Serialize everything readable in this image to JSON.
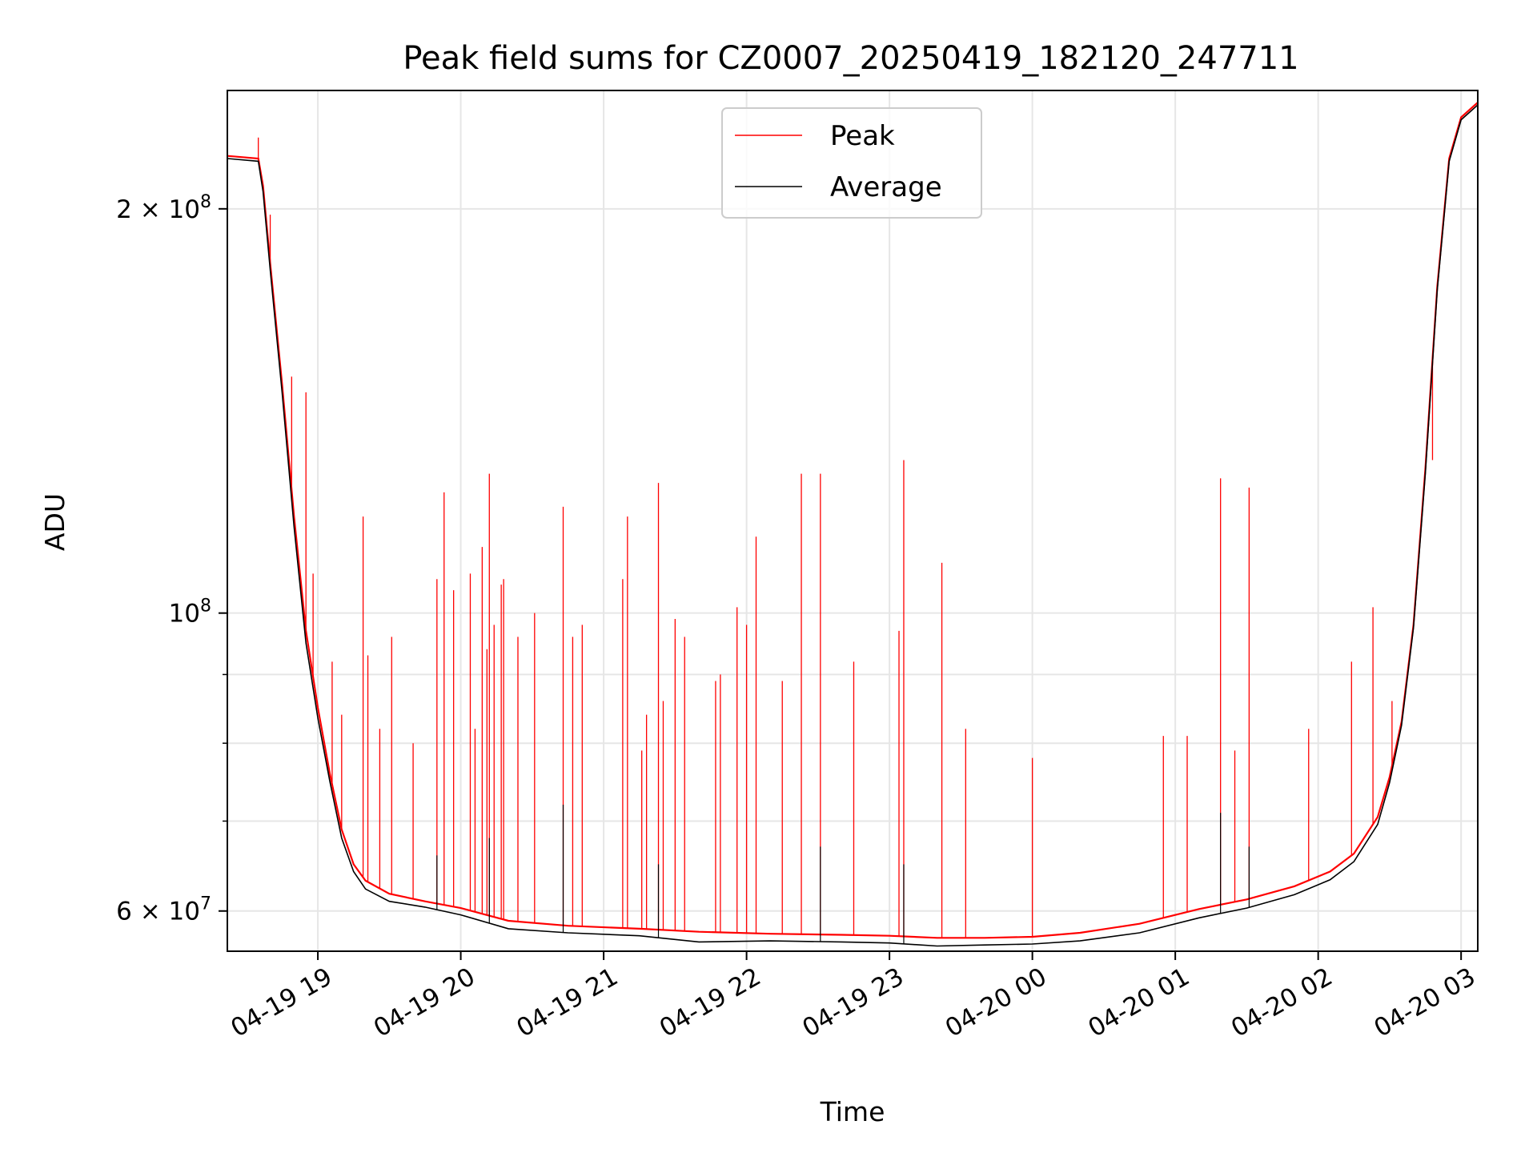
{
  "chart_data": {
    "type": "line",
    "title": "Peak field sums for CZ0007_20250419_182120_247711",
    "xlabel": "Time",
    "ylabel": "ADU",
    "yscale": "log",
    "xlim": [
      "2025-04-19T18:22",
      "2025-04-20T03:07"
    ],
    "ylim": [
      56000000,
      245000000
    ],
    "grid": true,
    "legend": {
      "placement": "top-center",
      "entries": [
        "Peak",
        "Average"
      ]
    },
    "x_ticks": [
      {
        "value": "2025-04-19T19:00",
        "label": "04-19 19"
      },
      {
        "value": "2025-04-19T20:00",
        "label": "04-19 20"
      },
      {
        "value": "2025-04-19T21:00",
        "label": "04-19 21"
      },
      {
        "value": "2025-04-19T22:00",
        "label": "04-19 22"
      },
      {
        "value": "2025-04-19T23:00",
        "label": "04-19 23"
      },
      {
        "value": "2025-04-20T00:00",
        "label": "04-20 00"
      },
      {
        "value": "2025-04-20T01:00",
        "label": "04-20 01"
      },
      {
        "value": "2025-04-20T02:00",
        "label": "04-20 02"
      },
      {
        "value": "2025-04-20T03:00",
        "label": "04-20 03"
      }
    ],
    "y_ticks": [
      {
        "value": 60000000,
        "mantissa": "6",
        "exponent": "7"
      },
      {
        "value": 100000000,
        "mantissa": "",
        "exponent": "8"
      },
      {
        "value": 200000000,
        "mantissa": "2",
        "exponent": "8"
      }
    ],
    "y_minor_ticks": [
      70000000,
      80000000,
      90000000
    ],
    "series": [
      {
        "name": "Peak",
        "color": "#ff0000",
        "baseline": [
          [
            "2025-04-19T18:22",
            219000000
          ],
          [
            "2025-04-19T18:35",
            218000000
          ],
          [
            "2025-04-19T18:37",
            208000000
          ],
          [
            "2025-04-19T18:40",
            182000000
          ],
          [
            "2025-04-19T18:45",
            148000000
          ],
          [
            "2025-04-19T18:50",
            118000000
          ],
          [
            "2025-04-19T18:55",
            97000000
          ],
          [
            "2025-04-19T19:00",
            85000000
          ],
          [
            "2025-04-19T19:05",
            76000000
          ],
          [
            "2025-04-19T19:10",
            69000000
          ],
          [
            "2025-04-19T19:15",
            65000000
          ],
          [
            "2025-04-19T19:20",
            63200000
          ],
          [
            "2025-04-19T19:30",
            61800000
          ],
          [
            "2025-04-19T19:45",
            61000000
          ],
          [
            "2025-04-19T20:00",
            60300000
          ],
          [
            "2025-04-19T20:20",
            59000000
          ],
          [
            "2025-04-19T20:45",
            58500000
          ],
          [
            "2025-04-19T21:15",
            58200000
          ],
          [
            "2025-04-19T21:40",
            57900000
          ],
          [
            "2025-04-19T22:10",
            57700000
          ],
          [
            "2025-04-19T22:40",
            57600000
          ],
          [
            "2025-04-19T23:00",
            57500000
          ],
          [
            "2025-04-19T23:20",
            57300000
          ],
          [
            "2025-04-19T23:40",
            57300000
          ],
          [
            "2025-04-20T00:00",
            57400000
          ],
          [
            "2025-04-20T00:20",
            57800000
          ],
          [
            "2025-04-20T00:45",
            58700000
          ],
          [
            "2025-04-20T01:10",
            60200000
          ],
          [
            "2025-04-20T01:30",
            61200000
          ],
          [
            "2025-04-20T01:50",
            62600000
          ],
          [
            "2025-04-20T02:05",
            64200000
          ],
          [
            "2025-04-20T02:15",
            66200000
          ],
          [
            "2025-04-20T02:25",
            70500000
          ],
          [
            "2025-04-20T02:30",
            75500000
          ],
          [
            "2025-04-20T02:35",
            83000000
          ],
          [
            "2025-04-20T02:40",
            98000000
          ],
          [
            "2025-04-20T02:45",
            128000000
          ],
          [
            "2025-04-20T02:50",
            175000000
          ],
          [
            "2025-04-20T02:55",
            218000000
          ],
          [
            "2025-04-20T03:00",
            234000000
          ],
          [
            "2025-04-20T03:07",
            240000000
          ]
        ],
        "spikes": [
          [
            "2025-04-19T18:35",
            226000000
          ],
          [
            "2025-04-19T18:40",
            198000000
          ],
          [
            "2025-04-19T18:49",
            150000000
          ],
          [
            "2025-04-19T18:55",
            146000000
          ],
          [
            "2025-04-19T18:58",
            107000000
          ],
          [
            "2025-04-19T19:06",
            92000000
          ],
          [
            "2025-04-19T19:10",
            84000000
          ],
          [
            "2025-04-19T19:19",
            118000000
          ],
          [
            "2025-04-19T19:21",
            93000000
          ],
          [
            "2025-04-19T19:26",
            82000000
          ],
          [
            "2025-04-19T19:31",
            96000000
          ],
          [
            "2025-04-19T19:40",
            80000000
          ],
          [
            "2025-04-19T19:50",
            106000000
          ],
          [
            "2025-04-19T19:53",
            123000000
          ],
          [
            "2025-04-19T19:57",
            104000000
          ],
          [
            "2025-04-19T20:04",
            107000000
          ],
          [
            "2025-04-19T20:06",
            82000000
          ],
          [
            "2025-04-19T20:09",
            112000000
          ],
          [
            "2025-04-19T20:11",
            94000000
          ],
          [
            "2025-04-19T20:12",
            127000000
          ],
          [
            "2025-04-19T20:14",
            98000000
          ],
          [
            "2025-04-19T20:17",
            105000000
          ],
          [
            "2025-04-19T20:18",
            106000000
          ],
          [
            "2025-04-19T20:24",
            96000000
          ],
          [
            "2025-04-19T20:31",
            100000000
          ],
          [
            "2025-04-19T20:43",
            120000000
          ],
          [
            "2025-04-19T20:47",
            96000000
          ],
          [
            "2025-04-19T20:51",
            98000000
          ],
          [
            "2025-04-19T21:08",
            106000000
          ],
          [
            "2025-04-19T21:10",
            118000000
          ],
          [
            "2025-04-19T21:16",
            79000000
          ],
          [
            "2025-04-19T21:18",
            84000000
          ],
          [
            "2025-04-19T21:23",
            125000000
          ],
          [
            "2025-04-19T21:25",
            86000000
          ],
          [
            "2025-04-19T21:30",
            99000000
          ],
          [
            "2025-04-19T21:34",
            96000000
          ],
          [
            "2025-04-19T21:47",
            89000000
          ],
          [
            "2025-04-19T21:49",
            90000000
          ],
          [
            "2025-04-19T21:56",
            101000000
          ],
          [
            "2025-04-19T22:00",
            98000000
          ],
          [
            "2025-04-19T22:04",
            114000000
          ],
          [
            "2025-04-19T22:15",
            89000000
          ],
          [
            "2025-04-19T22:23",
            127000000
          ],
          [
            "2025-04-19T22:31",
            127000000
          ],
          [
            "2025-04-19T22:45",
            92000000
          ],
          [
            "2025-04-19T23:04",
            97000000
          ],
          [
            "2025-04-19T23:06",
            130000000
          ],
          [
            "2025-04-19T23:22",
            109000000
          ],
          [
            "2025-04-19T23:32",
            82000000
          ],
          [
            "2025-04-20T00:00",
            78000000
          ],
          [
            "2025-04-20T00:55",
            81000000
          ],
          [
            "2025-04-20T01:05",
            81000000
          ],
          [
            "2025-04-20T01:19",
            126000000
          ],
          [
            "2025-04-20T01:25",
            79000000
          ],
          [
            "2025-04-20T01:31",
            124000000
          ],
          [
            "2025-04-20T01:56",
            82000000
          ],
          [
            "2025-04-20T02:14",
            92000000
          ],
          [
            "2025-04-20T02:23",
            101000000
          ],
          [
            "2025-04-20T02:31",
            86000000
          ],
          [
            "2025-04-20T02:48",
            130000000
          ]
        ]
      },
      {
        "name": "Average",
        "color": "#000000",
        "points": [
          [
            "2025-04-19T18:22",
            218000000
          ],
          [
            "2025-04-19T18:35",
            217000000
          ],
          [
            "2025-04-19T18:37",
            206000000
          ],
          [
            "2025-04-19T18:40",
            180000000
          ],
          [
            "2025-04-19T18:45",
            146000000
          ],
          [
            "2025-04-19T18:50",
            116000000
          ],
          [
            "2025-04-19T18:55",
            95000000
          ],
          [
            "2025-04-19T19:00",
            83500000
          ],
          [
            "2025-04-19T19:05",
            75000000
          ],
          [
            "2025-04-19T19:10",
            68000000
          ],
          [
            "2025-04-19T19:15",
            64200000
          ],
          [
            "2025-04-19T19:20",
            62300000
          ],
          [
            "2025-04-19T19:30",
            61000000
          ],
          [
            "2025-04-19T19:45",
            60400000
          ],
          [
            "2025-04-19T20:00",
            59600000
          ],
          [
            "2025-04-19T20:20",
            58200000
          ],
          [
            "2025-04-19T20:45",
            57800000
          ],
          [
            "2025-04-19T21:15",
            57500000
          ],
          [
            "2025-04-19T21:40",
            56900000
          ],
          [
            "2025-04-19T22:10",
            57000000
          ],
          [
            "2025-04-19T22:40",
            56900000
          ],
          [
            "2025-04-19T23:00",
            56800000
          ],
          [
            "2025-04-19T23:20",
            56500000
          ],
          [
            "2025-04-19T23:40",
            56600000
          ],
          [
            "2025-04-20T00:00",
            56700000
          ],
          [
            "2025-04-20T00:20",
            57000000
          ],
          [
            "2025-04-20T00:45",
            57800000
          ],
          [
            "2025-04-20T01:10",
            59300000
          ],
          [
            "2025-04-20T01:30",
            60300000
          ],
          [
            "2025-04-20T01:50",
            61700000
          ],
          [
            "2025-04-20T02:05",
            63300000
          ],
          [
            "2025-04-20T02:15",
            65300000
          ],
          [
            "2025-04-20T02:25",
            69600000
          ],
          [
            "2025-04-20T02:30",
            74800000
          ],
          [
            "2025-04-20T02:35",
            82500000
          ],
          [
            "2025-04-20T02:40",
            97500000
          ],
          [
            "2025-04-20T02:45",
            127000000
          ],
          [
            "2025-04-20T02:50",
            174000000
          ],
          [
            "2025-04-20T02:55",
            217000000
          ],
          [
            "2025-04-20T03:00",
            233000000
          ],
          [
            "2025-04-20T03:07",
            239000000
          ]
        ],
        "spikes": [
          [
            "2025-04-19T19:50",
            66000000
          ],
          [
            "2025-04-19T20:12",
            68000000
          ],
          [
            "2025-04-19T20:43",
            72000000
          ],
          [
            "2025-04-19T21:23",
            65000000
          ],
          [
            "2025-04-19T22:31",
            67000000
          ],
          [
            "2025-04-19T23:06",
            65000000
          ],
          [
            "2025-04-20T01:19",
            71000000
          ],
          [
            "2025-04-20T01:31",
            67000000
          ]
        ]
      }
    ]
  }
}
